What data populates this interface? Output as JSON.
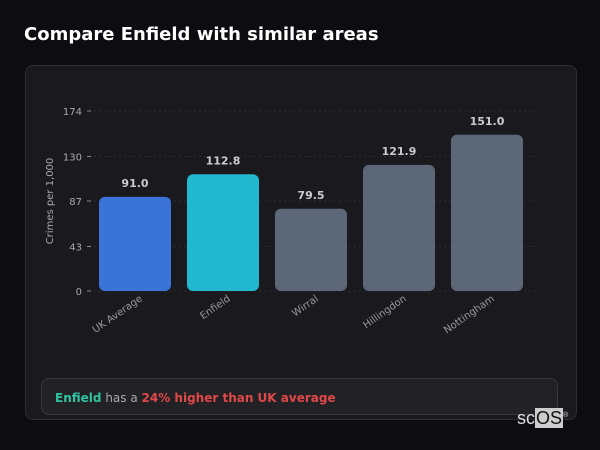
{
  "title": "Compare Enfield with similar areas",
  "chart_data": {
    "type": "bar",
    "ylabel": "Crimes per 1,000",
    "yticks": [
      0,
      43,
      87,
      130,
      174
    ],
    "ylim": [
      0,
      174
    ],
    "grid": true,
    "categories": [
      "UK Average",
      "Enfield",
      "Wirral",
      "Hillingdon",
      "Nottingham"
    ],
    "values": [
      91.0,
      112.8,
      79.5,
      121.9,
      151.0
    ],
    "value_labels": [
      "91.0",
      "112.8",
      "79.5",
      "121.9",
      "151.0"
    ],
    "colors": [
      "#3a74d9",
      "#22b8cf",
      "#5c6778",
      "#5c6778",
      "#5c6778"
    ]
  },
  "info": {
    "area": "Enfield",
    "mid": "has a",
    "comparison": "24% higher than UK average"
  },
  "logo": "scOS"
}
